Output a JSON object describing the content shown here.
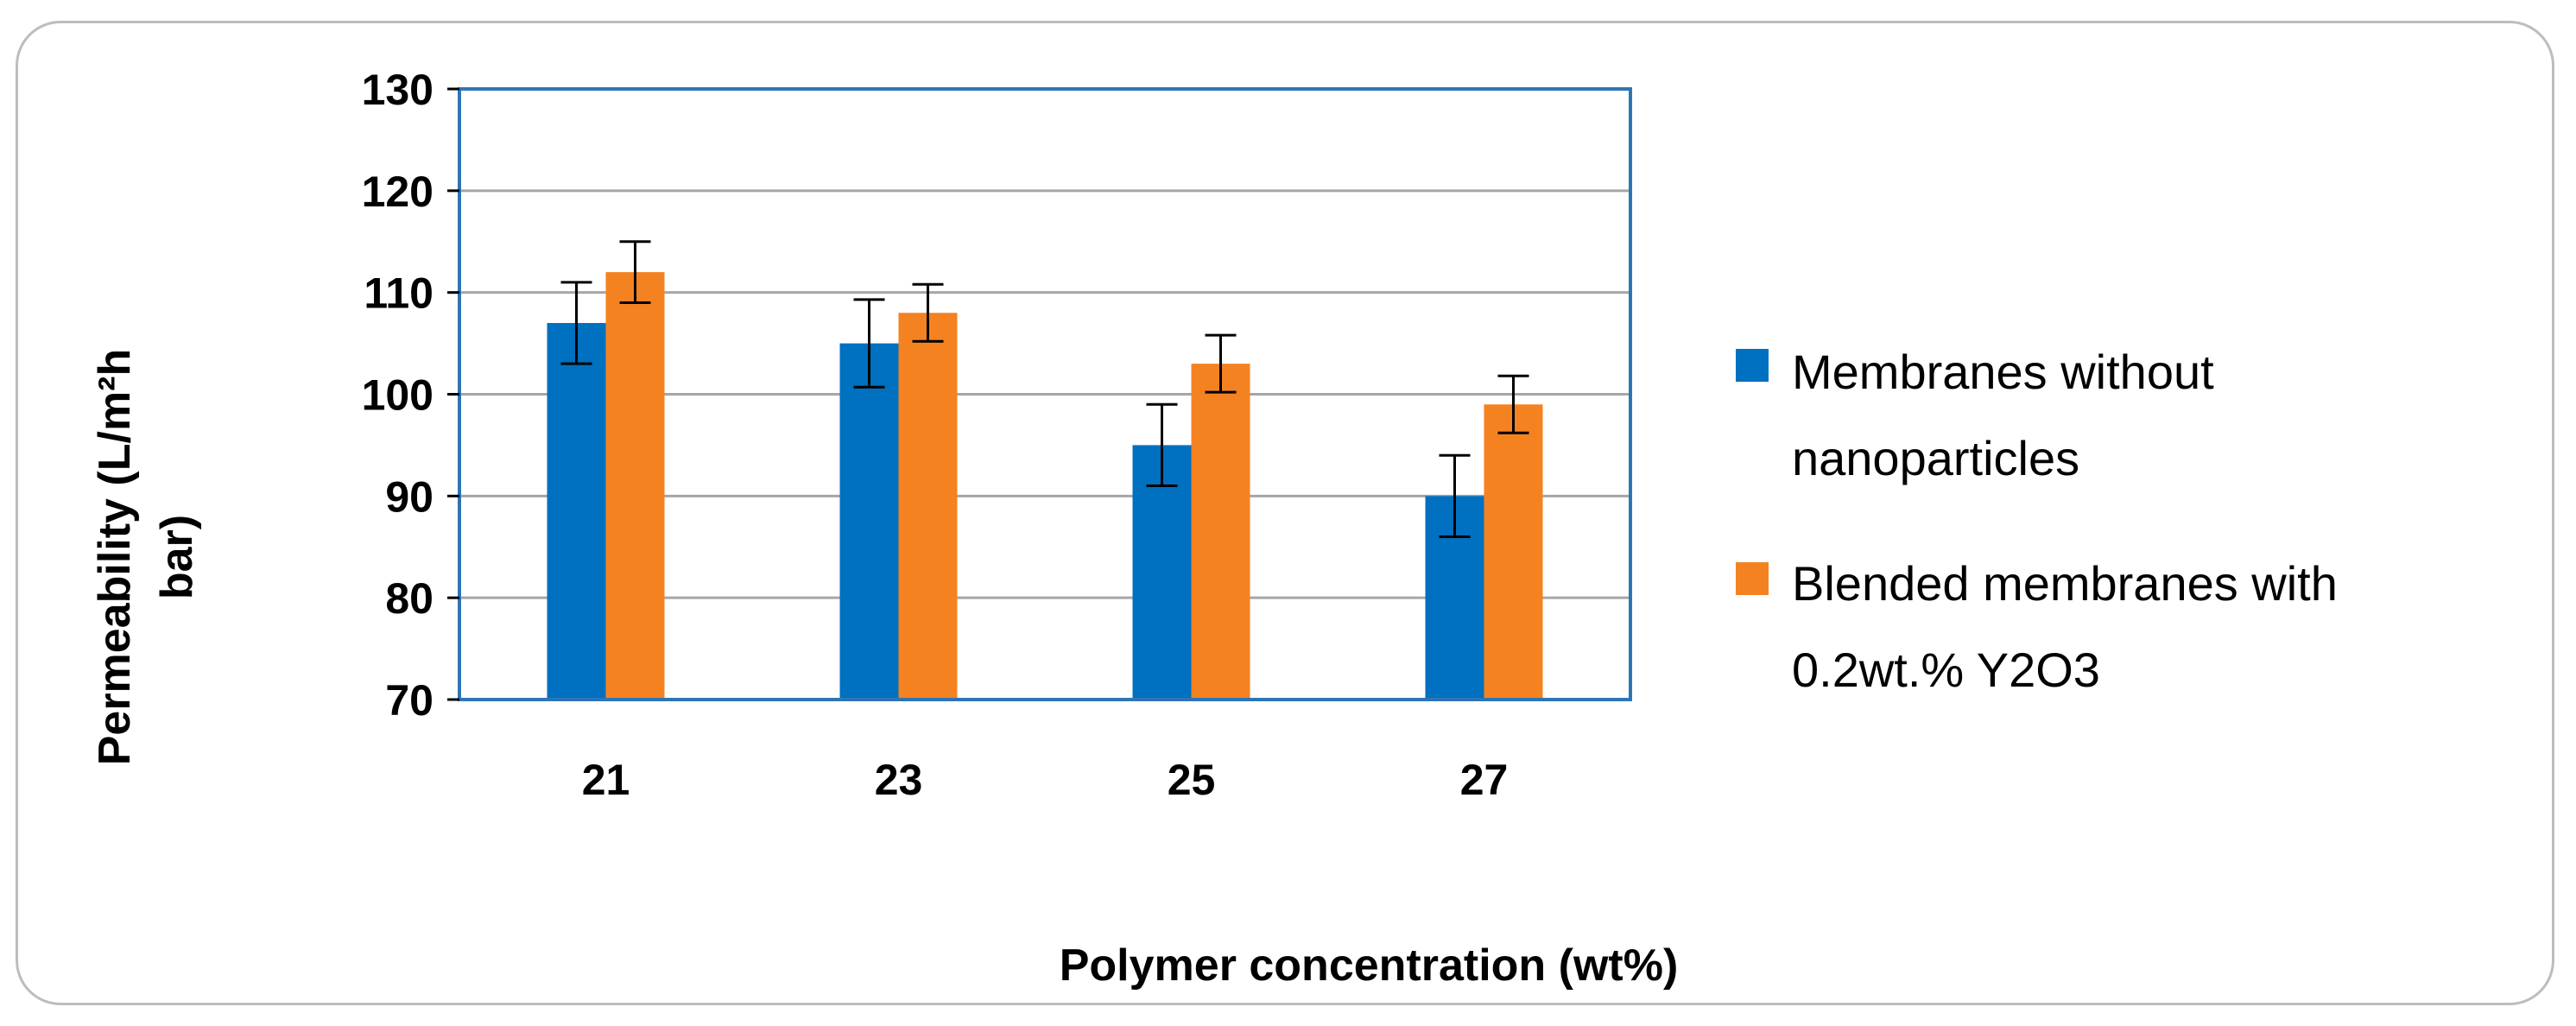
{
  "chart_data": {
    "type": "bar",
    "categories": [
      "21",
      "23",
      "25",
      "27"
    ],
    "series": [
      {
        "name": "Membranes without nanoparticles",
        "legend_lines": [
          "Membranes without",
          "nanoparticles"
        ],
        "color": "#0070C0",
        "values": [
          107,
          105,
          95,
          90
        ],
        "errors": [
          4,
          4.3,
          4,
          4
        ]
      },
      {
        "name": "Blended membranes with 0.2wt.% Y2O3",
        "legend_lines": [
          "Blended membranes with",
          "0.2wt.% Y2O3"
        ],
        "color": "#F58220",
        "values": [
          112,
          108,
          103,
          99
        ],
        "errors": [
          3,
          2.8,
          2.8,
          2.8
        ]
      }
    ],
    "xlabel": "Polymer concentration (wt%)",
    "ylabel_lines": [
      "Permeability (L/m²h",
      "bar)"
    ],
    "ylim": [
      70,
      130
    ],
    "yticks": [
      "70",
      "80",
      "90",
      "100",
      "110",
      "120",
      "130"
    ],
    "grid": true,
    "legend_position": "right",
    "plot_border_color": "#2E75B6",
    "grid_color": "#A6A6A6"
  }
}
